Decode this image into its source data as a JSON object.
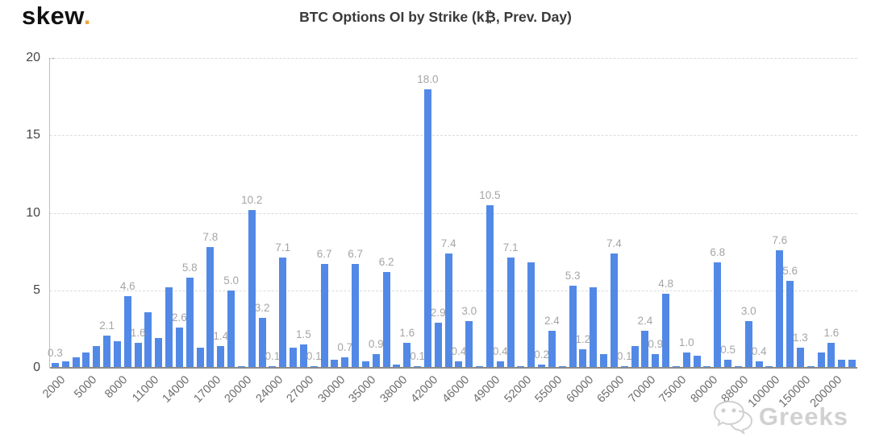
{
  "header": {
    "logo_text": "skew",
    "logo_dot": ".",
    "title": "BTC Options OI by Strike (k₿, Prev. Day)"
  },
  "watermark": {
    "text": "Greeks",
    "icon": "wechat-icon"
  },
  "chart_data": {
    "type": "bar",
    "title": "BTC Options OI by Strike (k₿, Prev. Day)",
    "xlabel": "",
    "ylabel": "",
    "ylim": [
      0,
      20
    ],
    "y_ticks": [
      0,
      5,
      10,
      15,
      20
    ],
    "grid": "horizontal-dashed",
    "legend": "none",
    "bar_color": "#5289e7",
    "bar_label_color": "#a5a5a5",
    "x_tick_every": 3,
    "x_tick_labels": [
      "2000",
      "5000",
      "8000",
      "11000",
      "14000",
      "17000",
      "20000",
      "24000",
      "27000",
      "30000",
      "35000",
      "38000",
      "42000",
      "46000",
      "49000",
      "52000",
      "55000",
      "60000",
      "65000",
      "70000",
      "75000",
      "80000",
      "88000",
      "100000",
      "150000",
      "200000"
    ],
    "values": [
      0.3,
      0.4,
      0.7,
      1.0,
      1.4,
      2.1,
      1.7,
      4.6,
      1.6,
      3.6,
      1.9,
      5.2,
      2.6,
      5.8,
      1.3,
      7.8,
      1.4,
      5.0,
      0.1,
      10.2,
      3.2,
      0.1,
      7.1,
      1.3,
      1.5,
      0.1,
      6.7,
      0.5,
      0.7,
      6.7,
      0.4,
      0.9,
      6.2,
      0.2,
      1.6,
      0.1,
      18.0,
      2.9,
      7.4,
      0.4,
      3.0,
      0.1,
      10.5,
      0.4,
      7.1,
      0.1,
      6.8,
      0.2,
      2.4,
      0.1,
      5.3,
      1.2,
      5.2,
      0.9,
      7.4,
      0.1,
      1.4,
      2.4,
      0.9,
      4.8,
      0.1,
      1.0,
      0.8,
      0.1,
      6.8,
      0.5,
      0.1,
      3.0,
      0.4,
      0.1,
      7.6,
      5.6,
      1.3,
      0.1,
      1.0,
      1.6,
      0.5,
      0.5
    ],
    "bar_labels": [
      "0.3",
      "",
      "",
      "",
      "",
      "2.1",
      "",
      "4.6",
      "1.6",
      "",
      "",
      "",
      "2.6",
      "5.8",
      "",
      "7.8",
      "1.4",
      "5.0",
      "",
      "10.2",
      "3.2",
      "0.1",
      "7.1",
      "",
      "1.5",
      "0.1",
      "6.7",
      "",
      "0.7",
      "6.7",
      "",
      "0.9",
      "6.2",
      "",
      "1.6",
      "0.1",
      "18.0",
      "2.9",
      "7.4",
      "0.4",
      "3.0",
      "",
      "10.5",
      "0.4",
      "7.1",
      "",
      "",
      "0.2",
      "2.4",
      "",
      "5.3",
      "1.2",
      "",
      "",
      "7.4",
      "0.1",
      "",
      "2.4",
      "0.9",
      "4.8",
      "",
      "1.0",
      "",
      "",
      "6.8",
      "0.5",
      "",
      "3.0",
      "0.4",
      "",
      "7.6",
      "5.6",
      "1.3",
      "",
      "",
      "1.6",
      "",
      ""
    ]
  }
}
